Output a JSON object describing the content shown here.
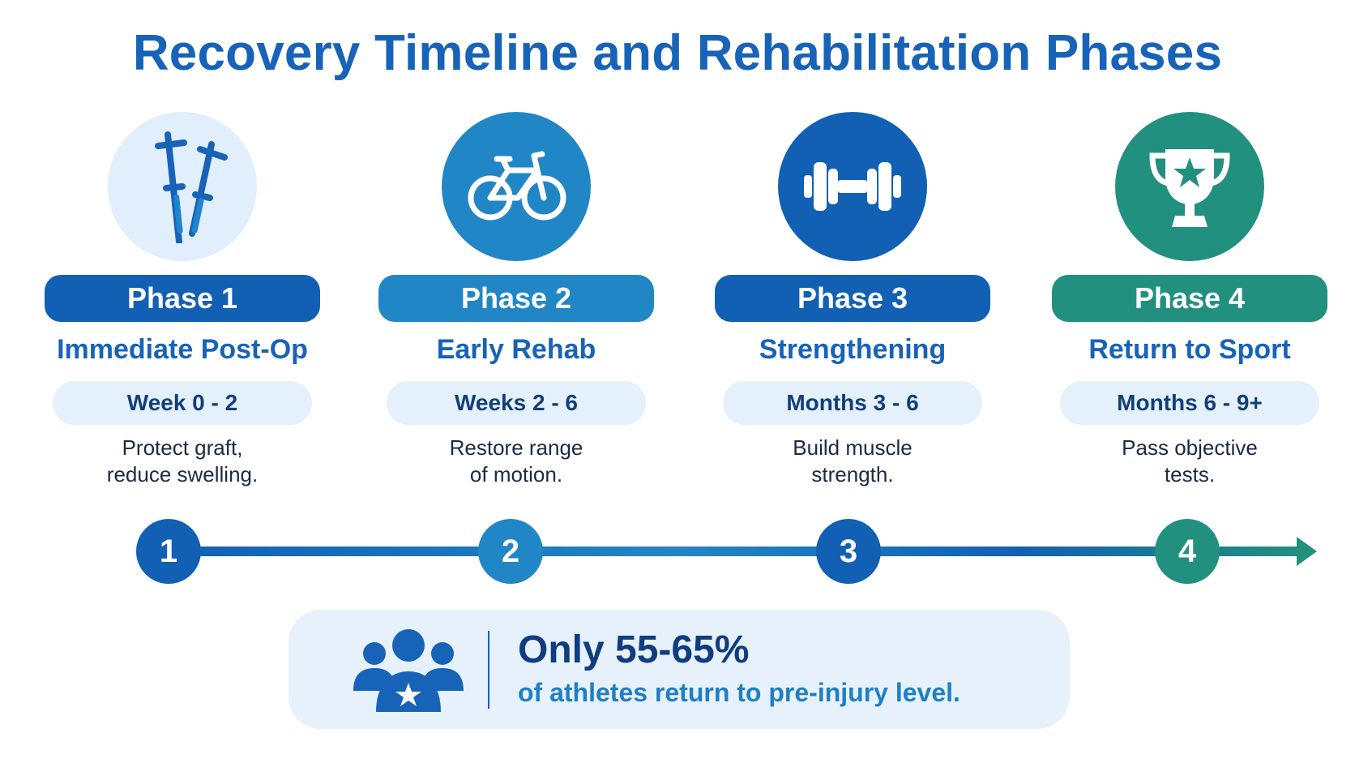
{
  "title": "Recovery Timeline and Rehabilitation Phases",
  "phases": [
    {
      "label": "Phase 1",
      "name": "Immediate Post-Op",
      "duration": "Week 0 - 2",
      "description_line1": "Protect graft,",
      "description_line2": "reduce swelling.",
      "number": "1",
      "icon": "crutches-icon",
      "color": "#1160b4",
      "icon_bg": "#e1eefb"
    },
    {
      "label": "Phase 2",
      "name": "Early Rehab",
      "duration": "Weeks 2 - 6",
      "description_line1": "Restore range",
      "description_line2": "of motion.",
      "number": "2",
      "icon": "bicycle-icon",
      "color": "#2186c6",
      "icon_bg": "#2186c6"
    },
    {
      "label": "Phase 3",
      "name": "Strengthening",
      "duration": "Months 3 - 6",
      "description_line1": "Build muscle",
      "description_line2": "strength.",
      "number": "3",
      "icon": "dumbbell-icon",
      "color": "#1160b4",
      "icon_bg": "#1160b4"
    },
    {
      "label": "Phase 4",
      "name": "Return to Sport",
      "duration": "Months 6 - 9+",
      "description_line1": "Pass objective",
      "description_line2": "tests.",
      "number": "4",
      "icon": "trophy-icon",
      "color": "#22907f",
      "icon_bg": "#22907f"
    }
  ],
  "stat": {
    "headline": "Only 55-65%",
    "subtext": "of athletes return to pre-injury level.",
    "icon": "athletes-group-icon"
  }
}
